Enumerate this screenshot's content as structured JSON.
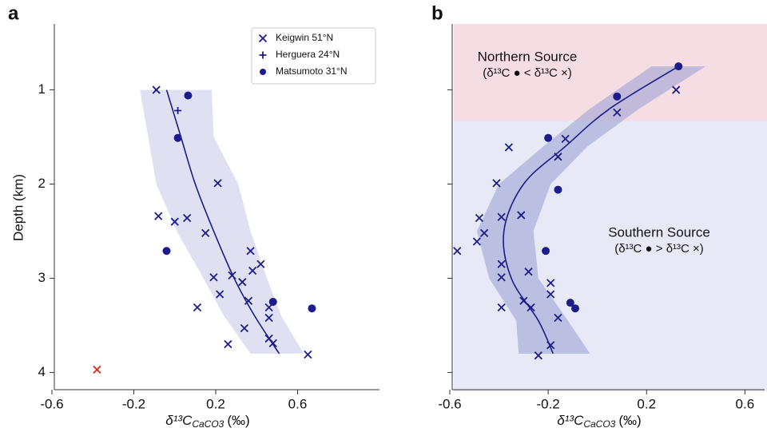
{
  "chart_data": [
    {
      "type": "scatter",
      "panel": "a",
      "xlabel": {
        "main": "δ¹³C",
        "sub": "CaCO3",
        "unit": "(‰)"
      },
      "ylabel": "Depth (km)",
      "xlim": [
        -0.6,
        1.0
      ],
      "ylim": [
        0.3,
        4.2
      ],
      "invert_y": true,
      "xticks": [
        -0.6,
        -0.2,
        0.2,
        0.6
      ],
      "yticks": [
        1,
        2,
        3,
        4
      ],
      "ytick_labels": true,
      "legend": "upper right",
      "series": [
        {
          "name": "Keigwin 51°N",
          "marker": "x",
          "color": "#1c1c8a",
          "x": [
            -0.09,
            0.21,
            -0.08,
            0.06,
            0.0,
            0.15,
            0.37,
            0.42,
            0.38,
            0.19,
            0.33,
            0.28,
            0.22,
            0.36,
            0.46,
            0.11,
            0.46,
            0.34,
            0.46,
            0.48,
            0.26,
            0.65
          ],
          "y": [
            1.0,
            1.99,
            2.34,
            2.36,
            2.4,
            2.52,
            2.71,
            2.85,
            2.92,
            2.99,
            3.04,
            2.97,
            3.17,
            3.24,
            3.31,
            3.31,
            3.42,
            3.53,
            3.64,
            3.69,
            3.7,
            3.81
          ]
        },
        {
          "name": "Herguera 24°N",
          "marker": "+",
          "color": "#1c1c8a",
          "x": [
            0.015
          ],
          "y": [
            1.22
          ]
        },
        {
          "name": "Matsumoto 31°N",
          "marker": "o",
          "color": "#1c1c8a",
          "x": [
            0.065,
            0.015,
            -0.04,
            0.48,
            0.67
          ],
          "y": [
            1.06,
            1.51,
            2.71,
            3.25,
            3.32
          ]
        }
      ],
      "outliers": {
        "marker": "x",
        "color": "#e02020",
        "x": [
          -0.38
        ],
        "y": [
          3.97
        ]
      },
      "fit": {
        "color": "#1c1c8a",
        "y": [
          1.0,
          1.5,
          2.0,
          2.5,
          3.0,
          3.4,
          3.8
        ],
        "x": [
          -0.04,
          0.03,
          0.1,
          0.19,
          0.29,
          0.39,
          0.51
        ]
      },
      "band": {
        "color": "#c9cce8",
        "y": [
          1.0,
          1.5,
          2.0,
          2.5,
          3.0,
          3.4,
          3.8
        ],
        "lo": [
          -0.17,
          -0.13,
          -0.09,
          0.01,
          0.14,
          0.24,
          0.37
        ],
        "hi": [
          0.18,
          0.19,
          0.31,
          0.37,
          0.45,
          0.52,
          0.63
        ]
      }
    },
    {
      "type": "scatter",
      "panel": "b",
      "xlabel": {
        "main": "δ¹³C",
        "sub": "CaCO3",
        "unit": "(‰)"
      },
      "xlim": [
        -0.6,
        0.68
      ],
      "ylim": [
        0.3,
        4.2
      ],
      "invert_y": true,
      "xticks": [
        -0.6,
        -0.2,
        0.2,
        0.6
      ],
      "yticks": [
        1,
        2,
        3,
        4
      ],
      "ytick_labels": false,
      "regions": [
        {
          "name": "Northern Source",
          "note": "(δ¹³C ● < δ¹³C ×)",
          "color": "#f6dce3",
          "text_color": "#d6587c",
          "from": 0.3,
          "to": 1.8
        },
        {
          "name": "Southern Source",
          "note": "(δ¹³C ● > δ¹³C ×)",
          "color": "#e7e9f6",
          "text_color": "#8c93d4",
          "from": 1.8,
          "to": 4.2
        }
      ],
      "series": [
        {
          "marker": "x",
          "color": "#1c1c8a",
          "x": [
            0.32,
            0.08,
            -0.13,
            -0.36,
            -0.16,
            -0.41,
            -0.31,
            -0.39,
            -0.48,
            -0.46,
            -0.49,
            -0.57,
            -0.39,
            -0.39,
            -0.28,
            -0.19,
            -0.19,
            -0.3,
            -0.27,
            -0.39,
            -0.16,
            -0.19,
            -0.24
          ],
          "y": [
            1.0,
            1.24,
            1.52,
            1.61,
            1.71,
            1.99,
            2.33,
            2.35,
            2.36,
            2.52,
            2.61,
            2.71,
            2.85,
            2.99,
            2.93,
            3.05,
            3.17,
            3.24,
            3.31,
            3.31,
            3.42,
            3.71,
            3.82
          ]
        },
        {
          "marker": "o",
          "color": "#1c1c8a",
          "x": [
            0.33,
            0.08,
            -0.2,
            -0.16,
            -0.21,
            -0.11,
            -0.09
          ],
          "y": [
            0.75,
            1.07,
            1.51,
            2.06,
            2.71,
            3.26,
            3.32
          ]
        }
      ],
      "fit": {
        "color": "#1c1c8a",
        "y": [
          0.75,
          1.2,
          1.6,
          2.0,
          2.5,
          3.0,
          3.45,
          3.8
        ],
        "x": [
          0.33,
          0.05,
          -0.13,
          -0.3,
          -0.38,
          -0.35,
          -0.24,
          -0.18
        ]
      },
      "band": {
        "color": "#9ea3d4",
        "y": [
          0.75,
          1.2,
          1.6,
          2.0,
          2.5,
          3.0,
          3.45,
          3.8
        ],
        "lo": [
          0.22,
          -0.03,
          -0.22,
          -0.4,
          -0.49,
          -0.44,
          -0.33,
          -0.32
        ],
        "hi": [
          0.44,
          0.17,
          -0.04,
          -0.19,
          -0.26,
          -0.24,
          -0.12,
          -0.03
        ]
      }
    }
  ]
}
